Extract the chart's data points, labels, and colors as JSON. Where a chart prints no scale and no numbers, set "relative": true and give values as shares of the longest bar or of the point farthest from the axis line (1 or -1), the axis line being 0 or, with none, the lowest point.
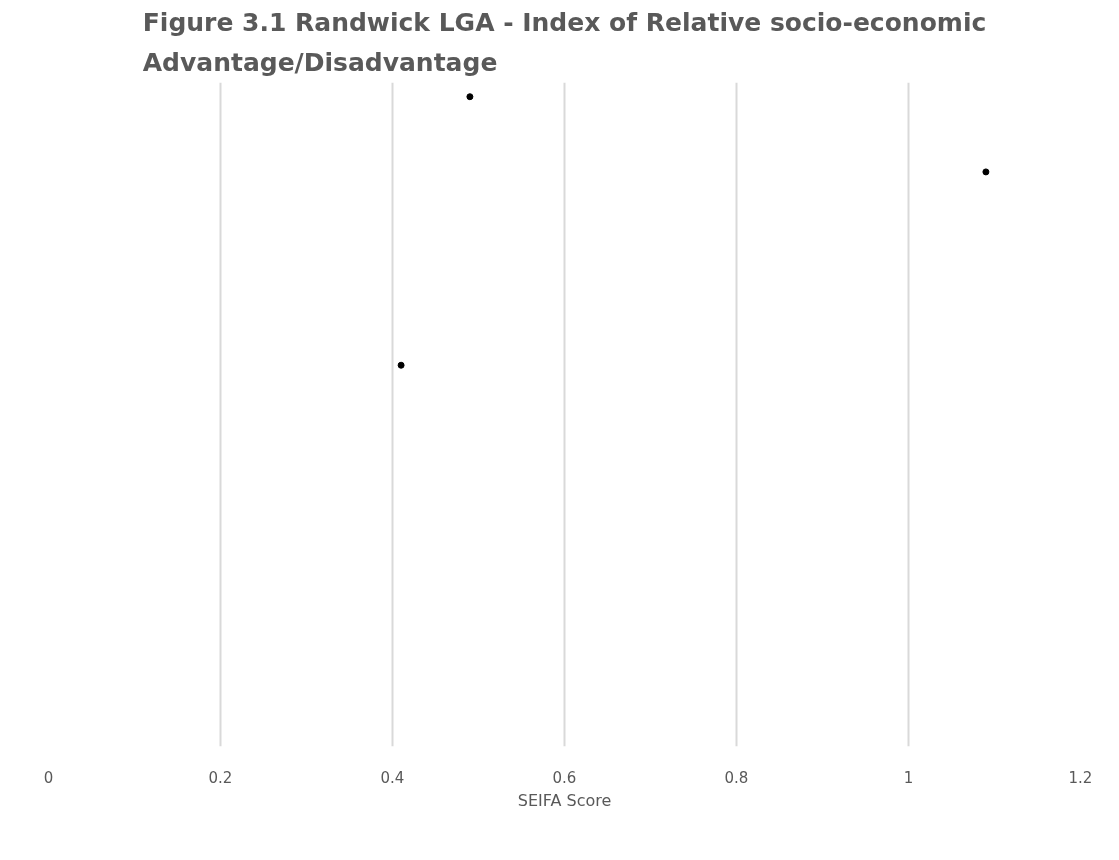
{
  "chart_data": {
    "type": "scatter",
    "title": "Figure 3.1 Randwick LGA - Index of Relative socio-economic Advantage/Disadvantage",
    "xlabel": "SEIFA Score",
    "x": [
      0.49,
      1.09,
      0.41
    ],
    "values": [
      1,
      0.72,
      0
    ],
    "relative": true,
    "color": "#000000",
    "marker": "circle",
    "xlim": [
      0,
      1.2
    ],
    "xticks": [
      0,
      0.2,
      0.4,
      0.6,
      0.8,
      1,
      1.2
    ],
    "grid": "x",
    "tick_labels": "x"
  }
}
